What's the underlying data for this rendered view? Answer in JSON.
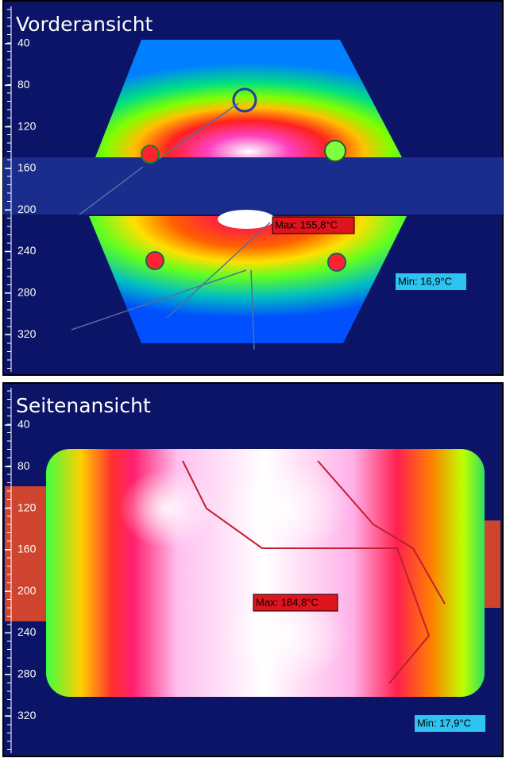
{
  "panels": [
    {
      "title": "Vorderansicht",
      "scale_ticks": [
        "40",
        "80",
        "120",
        "160",
        "200",
        "240",
        "280",
        "320"
      ],
      "max_label": "Max: 155,8°C",
      "min_label": "Min: 16,9°C"
    },
    {
      "title": "Seitenansicht",
      "scale_ticks": [
        "40",
        "80",
        "120",
        "160",
        "200",
        "240",
        "280",
        "320"
      ],
      "max_label": "Max: 184,8°C",
      "min_label": "Min: 17,9°C"
    }
  ]
}
